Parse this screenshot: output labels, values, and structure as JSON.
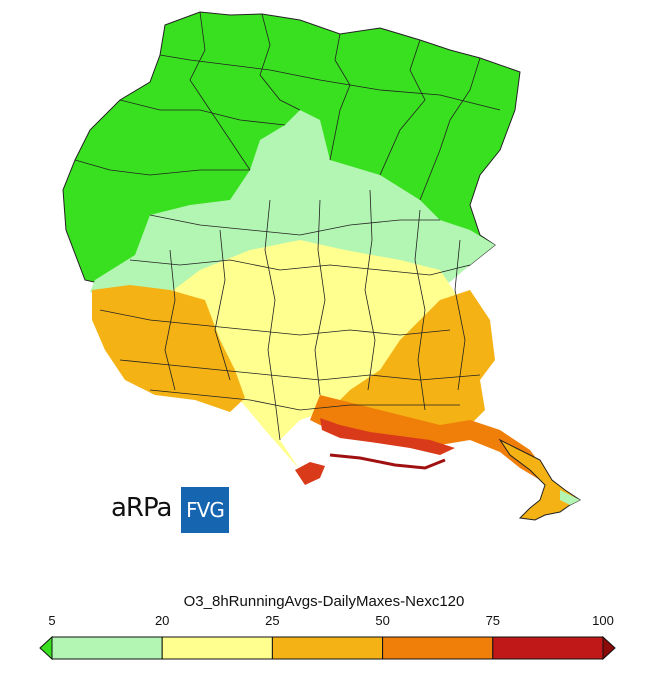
{
  "map": {
    "region_fills": {
      "mountain": "#39e01f",
      "lightgreen": "#b3f5b3",
      "yellow": "#ffff90",
      "orange": "#f4b214",
      "darkorange": "#f07f0a",
      "red": "#d93a1a",
      "darkred": "#a01010"
    },
    "border_color": "#222222"
  },
  "logo": {
    "left_text": "aRPa",
    "right_text": "FVG",
    "box_color": "#1565b0"
  },
  "legend": {
    "title": "O3_8hRunningAvgs-DailyMaxes-Nexc120",
    "ticks": [
      "5",
      "20",
      "25",
      "50",
      "75",
      "100"
    ],
    "bins": [
      {
        "from": "5",
        "to": "20",
        "color": "#b3f5b3"
      },
      {
        "from": "20",
        "to": "25",
        "color": "#ffff90"
      },
      {
        "from": "25",
        "to": "50",
        "color": "#f4b214"
      },
      {
        "from": "50",
        "to": "75",
        "color": "#f07f0a"
      },
      {
        "from": "75",
        "to": "100",
        "color": "#c01818"
      }
    ],
    "under_color": "#39e01f",
    "over_color": "#8b0a0a"
  }
}
